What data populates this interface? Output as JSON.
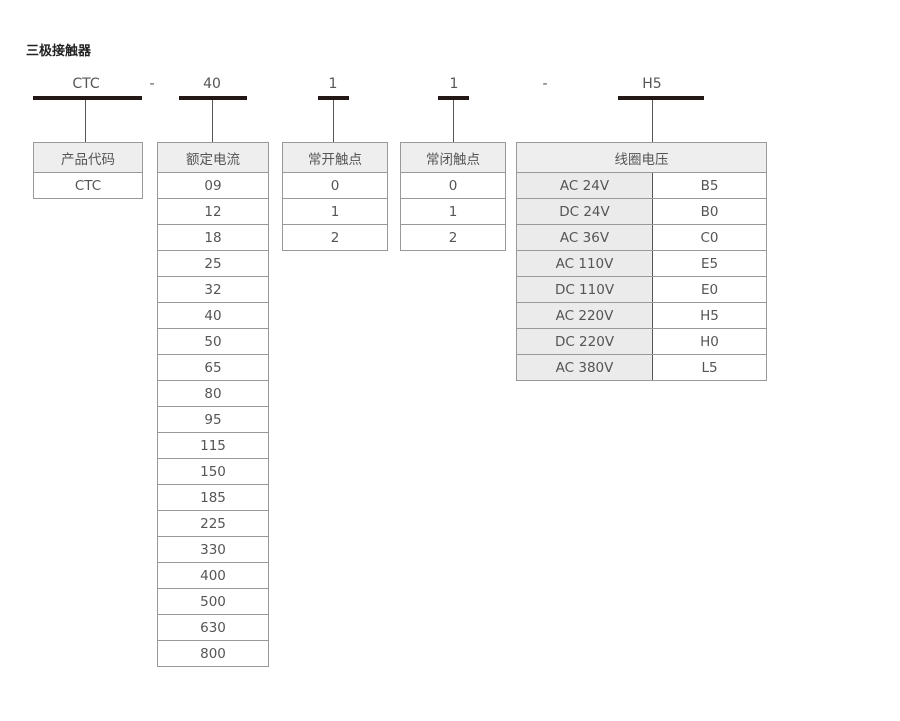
{
  "title": "三极接触器",
  "code": [
    {
      "text": "CTC"
    },
    {
      "text": "-"
    },
    {
      "text": "40"
    },
    {
      "text": "1"
    },
    {
      "text": "1"
    },
    {
      "text": "-"
    },
    {
      "text": "H5"
    }
  ],
  "tables": {
    "product_code": {
      "header": "产品代码",
      "rows": [
        "CTC"
      ]
    },
    "rated_current": {
      "header": "额定电流",
      "rows": [
        "09",
        "12",
        "18",
        "25",
        "32",
        "40",
        "50",
        "65",
        "80",
        "95",
        "115",
        "150",
        "185",
        "225",
        "330",
        "400",
        "500",
        "630",
        "800"
      ]
    },
    "no_contacts": {
      "header": "常开触点",
      "rows": [
        "0",
        "1",
        "2"
      ]
    },
    "nc_contacts": {
      "header": "常闭触点",
      "rows": [
        "0",
        "1",
        "2"
      ]
    },
    "coil_voltage": {
      "header": "线圈电压",
      "rows": [
        {
          "voltage": "AC 24V",
          "code": "B5"
        },
        {
          "voltage": "DC 24V",
          "code": "B0"
        },
        {
          "voltage": "AC 36V",
          "code": "C0"
        },
        {
          "voltage": "AC 110V",
          "code": "E5"
        },
        {
          "voltage": "DC 110V",
          "code": "E0"
        },
        {
          "voltage": "AC 220V",
          "code": "H5"
        },
        {
          "voltage": "DC 220V",
          "code": "H0"
        },
        {
          "voltage": "AC 380V",
          "code": "L5"
        }
      ]
    }
  }
}
